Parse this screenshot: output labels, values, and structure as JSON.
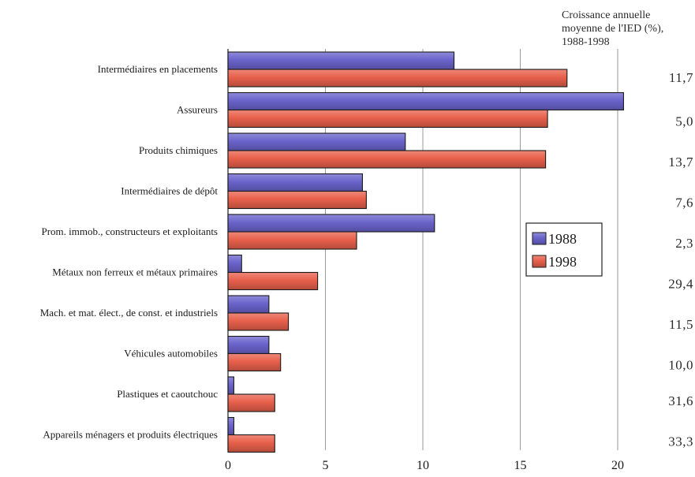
{
  "chart_data": {
    "type": "bar",
    "orientation": "horizontal",
    "categories": [
      "Intermédiaires en placements",
      "Assureurs",
      "Produits chimiques",
      "Intermédiaires de dépôt",
      "Prom. immob., constructeurs et exploitants",
      "Métaux non ferreux et métaux primaires",
      "Mach. et mat. élect., de const. et industriels",
      "Véhicules automobiles",
      "Plastiques et caoutchouc",
      "Appareils ménagers et produits électriques"
    ],
    "series": [
      {
        "name": "1988",
        "color": "#6a64cc",
        "values": [
          11.6,
          20.3,
          9.1,
          6.9,
          10.6,
          0.7,
          2.1,
          2.1,
          0.3,
          0.3
        ]
      },
      {
        "name": "1998",
        "color": "#e8604c",
        "values": [
          17.4,
          16.4,
          16.3,
          7.1,
          6.6,
          4.6,
          3.1,
          2.7,
          2.4,
          2.4
        ]
      }
    ],
    "xlim": [
      0,
      20
    ],
    "xticks": [
      "0",
      "5",
      "10",
      "15",
      "20"
    ],
    "grid": "vertical",
    "legend": "right",
    "growth_title": [
      "Croissance annuelle",
      "moyenne de l'IED (%),",
      "1988-1998"
    ],
    "growth_values": [
      "11,7",
      "5,0",
      "13,7",
      "7,6",
      "2,3",
      "29,4",
      "11,5",
      "10,0",
      "31,6",
      "33,3"
    ]
  }
}
